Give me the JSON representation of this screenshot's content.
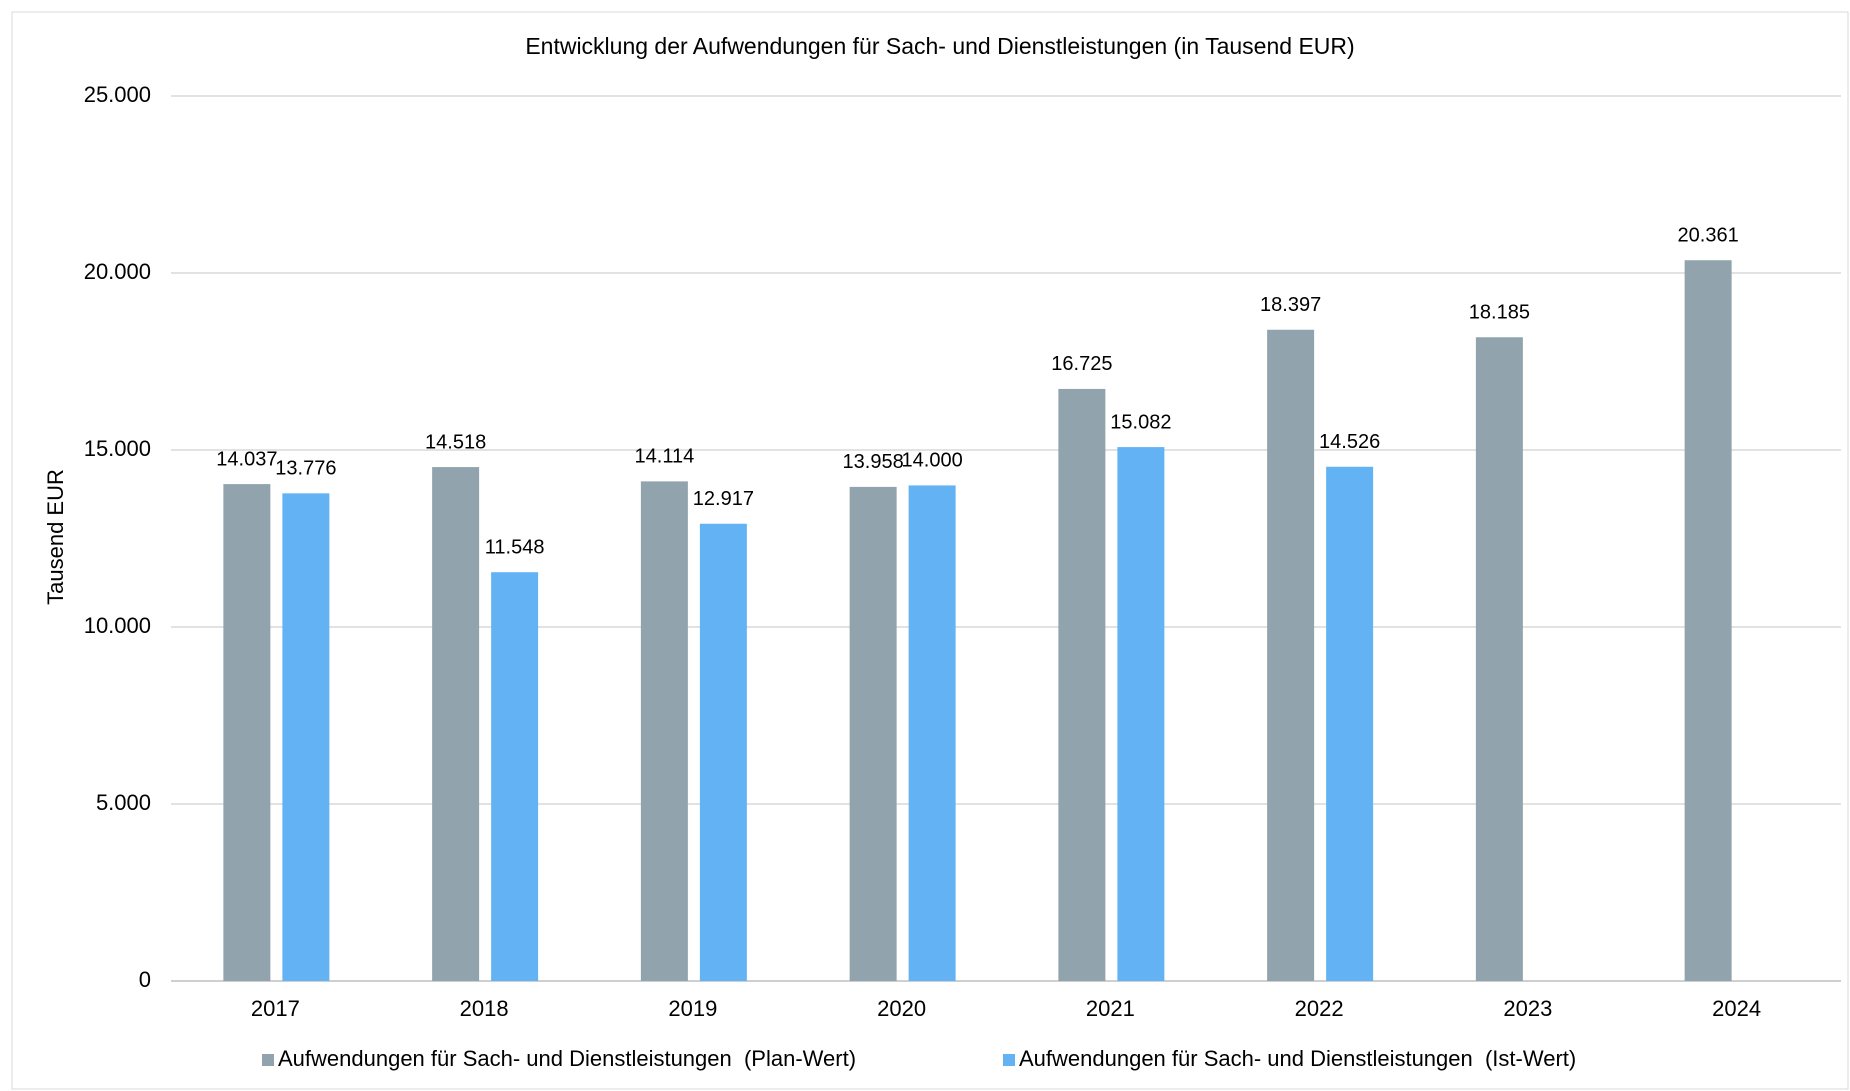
{
  "chart_data": {
    "type": "bar",
    "title": "Entwicklung der Aufwendungen für Sach- und Dienstleistungen (in Tausend EUR)",
    "y_label": "Tausend EUR",
    "categories": [
      "2017",
      "2018",
      "2019",
      "2020",
      "2021",
      "2022",
      "2023",
      "2024"
    ],
    "series": [
      {
        "name": "Aufwendungen für Sach- und Dienstleistungen  (Plan-Wert)",
        "color": "#91a4ad",
        "values": [
          14037,
          14518,
          14114,
          13958,
          16725,
          18397,
          18185,
          20361
        ],
        "value_labels": [
          "14.037",
          "14.518",
          "14.114",
          "13.958",
          "16.725",
          "18.397",
          "18.185",
          "20.361"
        ]
      },
      {
        "name": "Aufwendungen für Sach- und Dienstleistungen  (Ist-Wert)",
        "color": "#63b3f4",
        "values": [
          13776,
          11548,
          12917,
          14000,
          15082,
          14526,
          null,
          null
        ],
        "value_labels": [
          "13.776",
          "11.548",
          "12.917",
          "14.000",
          "15.082",
          "14.526",
          null,
          null
        ]
      }
    ],
    "ylim": [
      0,
      25000
    ],
    "yticks": [
      0,
      {
        "value": 5000,
        "label": "5.000"
      },
      {
        "value": 10000,
        "label": "10.000"
      },
      {
        "value": 15000,
        "label": "15.000"
      },
      {
        "value": 20000,
        "label": "20.000"
      },
      {
        "value": 25000,
        "label": "25.000"
      }
    ],
    "grid": true,
    "legend": "bottom"
  }
}
